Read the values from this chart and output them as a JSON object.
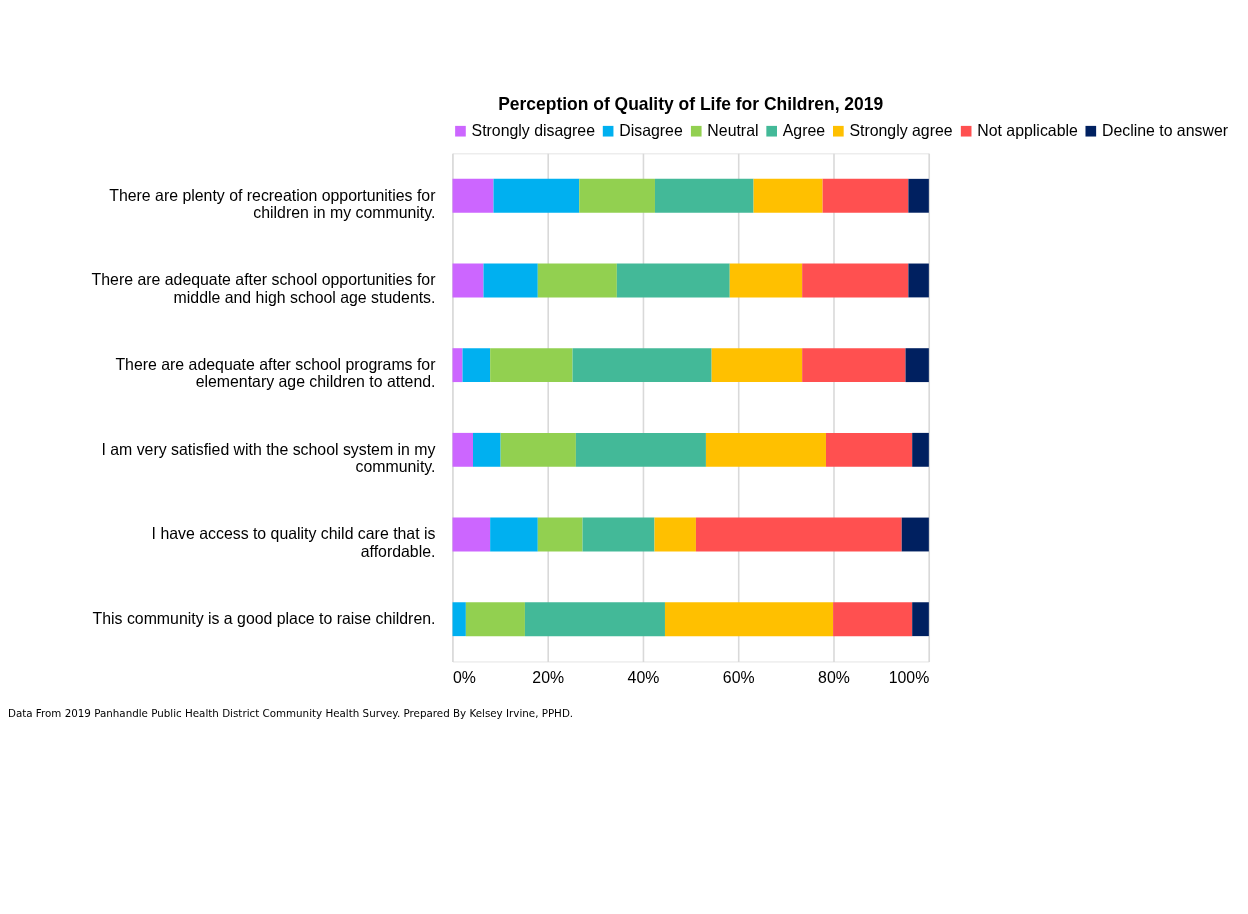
{
  "chart_data": {
    "type": "bar",
    "orientation": "horizontal",
    "stacked": true,
    "title": "Perception of Quality of Life for Children, 2019",
    "categories": [
      "There are plenty of recreation opportunities for children in my community.",
      "There are adequate after school opportunities for middle and high school age students.",
      "There are adequate after school programs for elementary age children to attend.",
      "I am very satisfied with the school system in my community.",
      "I have access to quality child care that is affordable.",
      "This community is a good place to raise children."
    ],
    "series": [
      {
        "name": "Strongly disagree",
        "color": "#cc66ff",
        "values": [
          8.6,
          6.5,
          2.1,
          4.3,
          7.9,
          0
        ]
      },
      {
        "name": "Disagree",
        "color": "#00b0f0",
        "values": [
          18.0,
          11.4,
          5.8,
          5.8,
          10.0,
          2.8
        ]
      },
      {
        "name": "Neutral",
        "color": "#92d050",
        "values": [
          15.9,
          16.6,
          17.3,
          15.8,
          9.4,
          12.4
        ]
      },
      {
        "name": "Agree",
        "color": "#43b998",
        "values": [
          20.7,
          23.7,
          29.2,
          27.3,
          15.1,
          29.4
        ]
      },
      {
        "name": "Strongly agree",
        "color": "#ffc000",
        "values": [
          14.5,
          15.2,
          19.0,
          25.2,
          8.7,
          35.3
        ]
      },
      {
        "name": "Not applicable",
        "color": "#ff5050",
        "values": [
          18.0,
          22.3,
          21.7,
          18.1,
          43.2,
          16.6
        ]
      },
      {
        "name": "Decline to answer",
        "color": "#002060",
        "values": [
          4.3,
          4.3,
          4.9,
          3.5,
          5.7,
          3.5
        ]
      }
    ],
    "xlim": [
      0,
      100
    ],
    "xticks": [
      {
        "value": 0,
        "label": "0%"
      },
      {
        "value": 20,
        "label": "20%"
      },
      {
        "value": 40,
        "label": "40%"
      },
      {
        "value": 60,
        "label": "60%"
      },
      {
        "value": 80,
        "label": "80%"
      },
      {
        "value": 100,
        "label": "100%"
      }
    ],
    "grid": "x",
    "legend": "top",
    "annotations": [
      "Data From 2019 Panhandle Public Health District Community Health Survey.  Prepared By Kelsey Irvine, PPHD."
    ]
  }
}
